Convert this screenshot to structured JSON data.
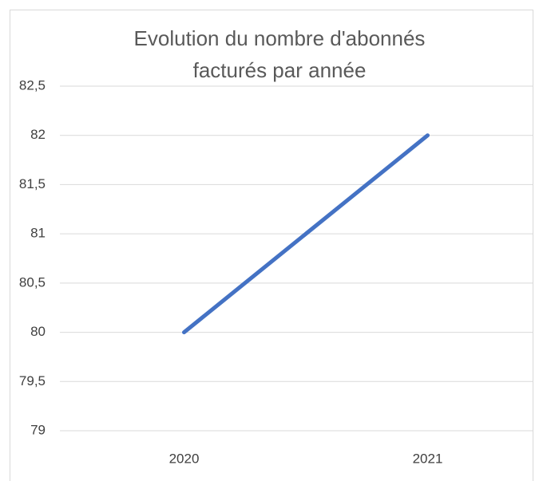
{
  "chart_data": {
    "type": "line",
    "title": [
      "Evolution du nombre d'abonnés",
      "facturés par année"
    ],
    "categories": [
      "2020",
      "2021"
    ],
    "series": [
      {
        "name": null,
        "color": "#4472c4",
        "values": [
          80,
          82
        ]
      }
    ],
    "ylim": [
      79,
      82.5
    ],
    "yticks": [
      79,
      {
        "value": 79.5,
        "label": "79,5"
      },
      80,
      {
        "value": 80.5,
        "label": "80,5"
      },
      81,
      {
        "value": 81.5,
        "label": "81,5"
      },
      82,
      {
        "value": 82.5,
        "label": "82,5"
      }
    ],
    "grid": true
  }
}
